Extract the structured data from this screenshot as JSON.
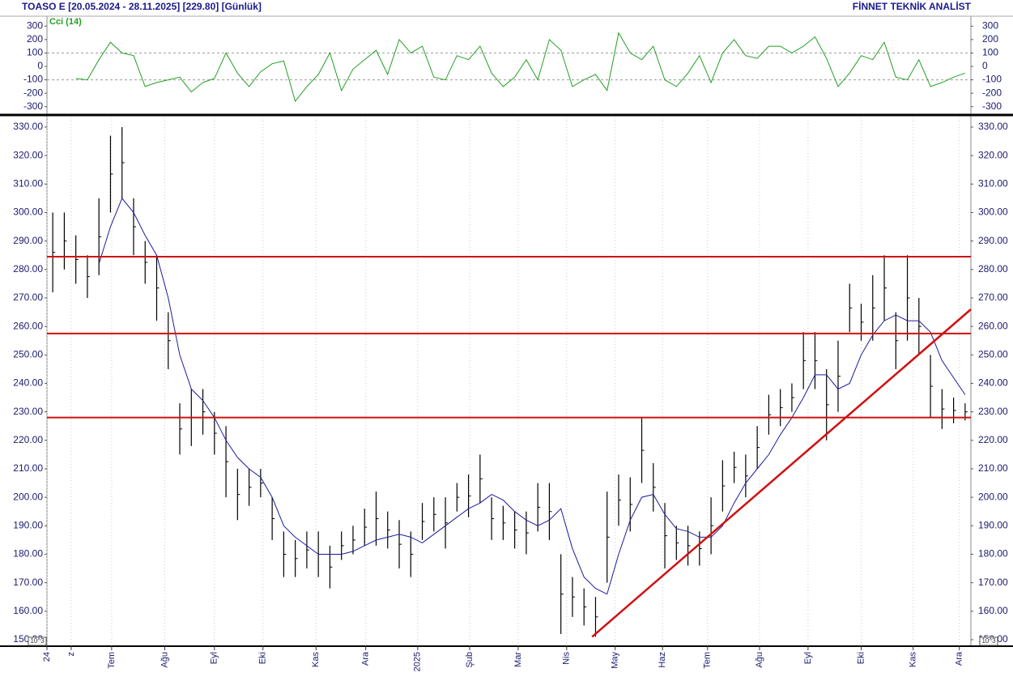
{
  "header": {
    "title": "TOASO E  [20.05.2024 - 28.11.2025]  [229.80]  [Günlük]",
    "brand": "FİNNET TEKNİK ANALİST"
  },
  "chart_data": [
    {
      "type": "line",
      "label": "Cci (14)",
      "x": [
        0,
        1,
        2,
        3,
        4,
        5,
        6,
        7,
        8,
        9,
        10,
        11,
        12,
        13,
        14,
        15,
        16,
        17,
        18,
        19,
        20,
        21,
        22,
        23,
        24,
        25,
        26,
        27,
        28,
        29,
        30,
        31,
        32,
        33,
        34,
        35,
        36,
        37,
        38,
        39,
        40,
        41,
        42,
        43,
        44,
        45,
        46,
        47,
        48,
        49,
        50,
        51,
        52,
        53,
        54,
        55,
        56,
        57,
        58,
        59,
        60,
        61,
        62,
        63,
        64,
        65,
        66,
        67,
        68,
        69,
        70,
        71,
        72,
        73,
        74,
        75,
        76,
        77,
        78,
        79
      ],
      "series": [
        {
          "name": "Cci (14)",
          "color": "#22a022",
          "values": [
            null,
            null,
            -90,
            -100,
            50,
            180,
            100,
            80,
            -150,
            -120,
            -100,
            -80,
            -190,
            -120,
            -90,
            100,
            -50,
            -150,
            -40,
            20,
            40,
            -260,
            -150,
            -60,
            100,
            -180,
            -20,
            50,
            120,
            -60,
            200,
            100,
            150,
            -80,
            -100,
            80,
            50,
            150,
            -50,
            -150,
            -80,
            50,
            -100,
            200,
            120,
            -150,
            -100,
            -60,
            -180,
            250,
            100,
            50,
            150,
            -100,
            -150,
            -50,
            80,
            -120,
            100,
            200,
            80,
            60,
            150,
            150,
            100,
            150,
            220,
            60,
            -150,
            -50,
            80,
            50,
            180,
            -80,
            -100,
            50,
            -150,
            -120,
            -80,
            -50
          ]
        }
      ],
      "xlim": [
        -0.5,
        79.5
      ],
      "ylim": [
        -350,
        350
      ],
      "yticks": [
        300,
        200,
        100,
        0,
        -100,
        -200,
        -300
      ],
      "ref_lines": [
        100,
        -100
      ]
    },
    {
      "type": "range-bar",
      "x": [
        0,
        1,
        2,
        3,
        4,
        5,
        6,
        7,
        8,
        9,
        10,
        11,
        12,
        13,
        14,
        15,
        16,
        17,
        18,
        19,
        20,
        21,
        22,
        23,
        24,
        25,
        26,
        27,
        28,
        29,
        30,
        31,
        32,
        33,
        34,
        35,
        36,
        37,
        38,
        39,
        40,
        41,
        42,
        43,
        44,
        45,
        46,
        47,
        48,
        49,
        50,
        51,
        52,
        53,
        54,
        55,
        56,
        57,
        58,
        59,
        60,
        61,
        62,
        63,
        64,
        65,
        66,
        67,
        68,
        69,
        70,
        71,
        72,
        73,
        74,
        75,
        76,
        77,
        78,
        79
      ],
      "highs": [
        300,
        300,
        292,
        285,
        305,
        327,
        330,
        305,
        290,
        285,
        265,
        233,
        238,
        238,
        230,
        225,
        210,
        210,
        210,
        200,
        188,
        185,
        188,
        188,
        183,
        188,
        190,
        196,
        202,
        195,
        192,
        188,
        198,
        200,
        200,
        205,
        208,
        215,
        200,
        197,
        195,
        195,
        205,
        205,
        180,
        172,
        168,
        165,
        202,
        208,
        207,
        228,
        212,
        198,
        190,
        190,
        188,
        200,
        213,
        216,
        215,
        225,
        236,
        238,
        240,
        258,
        258,
        245,
        255,
        275,
        268,
        278,
        285,
        265,
        285,
        270,
        250,
        238,
        235,
        233
      ],
      "lows": [
        272,
        280,
        275,
        270,
        278,
        300,
        305,
        285,
        275,
        262,
        245,
        215,
        218,
        222,
        215,
        200,
        192,
        197,
        200,
        185,
        172,
        172,
        175,
        172,
        168,
        178,
        180,
        183,
        183,
        182,
        175,
        172,
        185,
        188,
        182,
        195,
        193,
        198,
        185,
        185,
        182,
        180,
        188,
        185,
        152,
        158,
        155,
        151,
        170,
        190,
        188,
        205,
        195,
        175,
        178,
        176,
        176,
        180,
        195,
        205,
        200,
        210,
        222,
        225,
        230,
        238,
        238,
        220,
        230,
        258,
        255,
        255,
        262,
        245,
        255,
        250,
        228,
        224,
        226,
        227
      ],
      "bar_color": "#000000",
      "ma": {
        "color": "#1c1c9c",
        "values": [
          null,
          null,
          null,
          null,
          282,
          295,
          305,
          300,
          292,
          285,
          270,
          250,
          238,
          234,
          228,
          220,
          214,
          210,
          207,
          200,
          190,
          186,
          183,
          180,
          180,
          180,
          181,
          183,
          185,
          186,
          187,
          186,
          184,
          187,
          190,
          193,
          196,
          198,
          201,
          199,
          195,
          192,
          190,
          192,
          196,
          182,
          172,
          168,
          166,
          180,
          192,
          200,
          201,
          194,
          189,
          188,
          186,
          186,
          190,
          198,
          205,
          210,
          215,
          222,
          228,
          235,
          243,
          243,
          238,
          240,
          250,
          257,
          262,
          264,
          262,
          262,
          258,
          248,
          242,
          236
        ]
      },
      "hlines": {
        "color": "#d01010",
        "values": [
          284.5,
          257.5,
          228
        ]
      },
      "trendline": {
        "color": "#d01010",
        "x": [
          46.7,
          79.5
        ],
        "y": [
          151,
          266
        ]
      },
      "xlim": [
        -0.5,
        79.5
      ],
      "ylim": [
        148,
        333.4
      ],
      "yticks": [
        {
          "value": 330,
          "label": "330.00"
        },
        {
          "value": 320,
          "label": "320.00"
        },
        {
          "value": 310,
          "label": "310.00"
        },
        {
          "value": 300,
          "label": "300.00"
        },
        {
          "value": 290,
          "label": "290.00"
        },
        {
          "value": 280,
          "label": "280.00"
        },
        {
          "value": 270,
          "label": "270.00"
        },
        {
          "value": 260,
          "label": "260.00"
        },
        {
          "value": 250,
          "label": "250.00"
        },
        {
          "value": 240,
          "label": "240.00"
        },
        {
          "value": 230,
          "label": "230.00"
        },
        {
          "value": 220,
          "label": "220.00"
        },
        {
          "value": 210,
          "label": "210.00"
        },
        {
          "value": 200,
          "label": "200.00"
        },
        {
          "value": 190,
          "label": "190.00"
        },
        {
          "value": 180,
          "label": "180.00"
        },
        {
          "value": 170,
          "label": "170.00"
        },
        {
          "value": 160,
          "label": "160.00"
        },
        {
          "value": 150,
          "label": "150.00"
        }
      ],
      "xticks": [
        {
          "value": -0.5,
          "label": "24"
        },
        {
          "value": 1.6,
          "label": "z"
        },
        {
          "value": 5.1,
          "label": "Tem"
        },
        {
          "value": 9.7,
          "label": "Ağu"
        },
        {
          "value": 14.0,
          "label": "Eyl"
        },
        {
          "value": 18.2,
          "label": "Eki"
        },
        {
          "value": 22.8,
          "label": "Kas"
        },
        {
          "value": 27.1,
          "label": "Ara"
        },
        {
          "value": 31.6,
          "label": "2025"
        },
        {
          "value": 36.1,
          "label": "Şub"
        },
        {
          "value": 40.3,
          "label": "Mar"
        },
        {
          "value": 44.5,
          "label": "Nis"
        },
        {
          "value": 48.7,
          "label": "May"
        },
        {
          "value": 52.8,
          "label": "Haz"
        },
        {
          "value": 56.7,
          "label": "Tem"
        },
        {
          "value": 61.2,
          "label": "Ağu"
        },
        {
          "value": 65.4,
          "label": "Eyl"
        },
        {
          "value": 70.0,
          "label": "Eki"
        },
        {
          "value": 74.5,
          "label": "Kas"
        },
        {
          "value": 78.5,
          "label": "Ara"
        }
      ],
      "grid": true,
      "unit_label": "10^3"
    }
  ]
}
